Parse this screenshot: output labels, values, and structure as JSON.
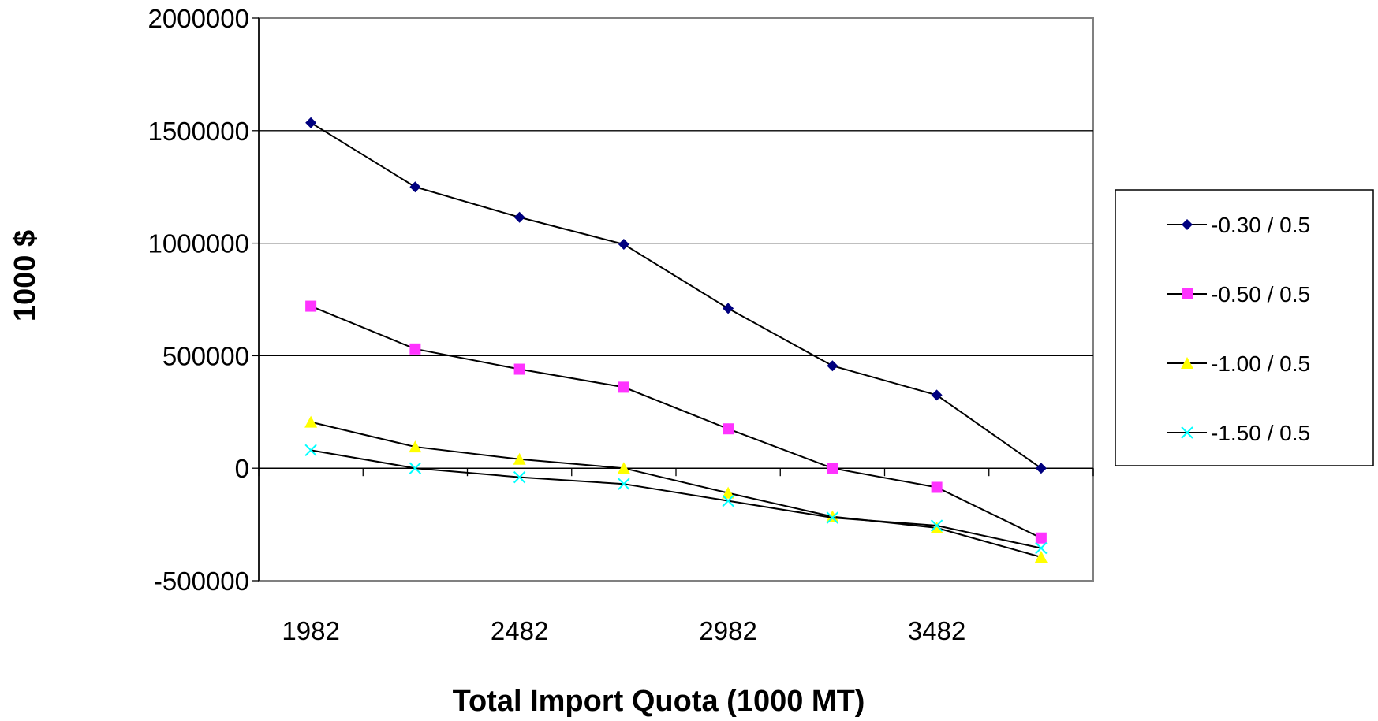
{
  "chart_data": {
    "type": "line",
    "title": "",
    "xlabel": "Total Import Quota (1000 MT)",
    "ylabel": "1000 $",
    "x": [
      1982,
      2232,
      2482,
      2732,
      2982,
      3232,
      3482,
      3732
    ],
    "x_tick_labels": [
      "1982",
      "2482",
      "2982",
      "3482"
    ],
    "x_tick_values": [
      1982,
      2482,
      2982,
      3482
    ],
    "ylim": [
      -500000,
      2000000
    ],
    "y_ticks": [
      -500000,
      0,
      500000,
      1000000,
      1500000,
      2000000
    ],
    "y_tick_labels": [
      "-500000",
      "0",
      "500000",
      "1000000",
      "1500000",
      "2000000"
    ],
    "grid": "horizontal",
    "legend_position": "right",
    "series": [
      {
        "name": "-0.30 / 0.5",
        "color": "#00007f",
        "marker": "diamond",
        "values": [
          1535000,
          1250000,
          1115000,
          995000,
          710000,
          455000,
          325000,
          0
        ]
      },
      {
        "name": "-0.50 / 0.5",
        "color": "#ff33ff",
        "marker": "square",
        "values": [
          720000,
          530000,
          440000,
          360000,
          175000,
          0,
          -85000,
          -310000
        ]
      },
      {
        "name": "-1.00 / 0.5",
        "color": "#ffff00",
        "marker": "triangle",
        "values": [
          205000,
          95000,
          40000,
          0,
          -110000,
          -215000,
          -265000,
          -395000
        ]
      },
      {
        "name": "-1.50 / 0.5",
        "color": "#00ffff",
        "marker": "x",
        "values": [
          80000,
          0,
          -40000,
          -70000,
          -145000,
          -220000,
          -255000,
          -355000
        ]
      }
    ]
  }
}
